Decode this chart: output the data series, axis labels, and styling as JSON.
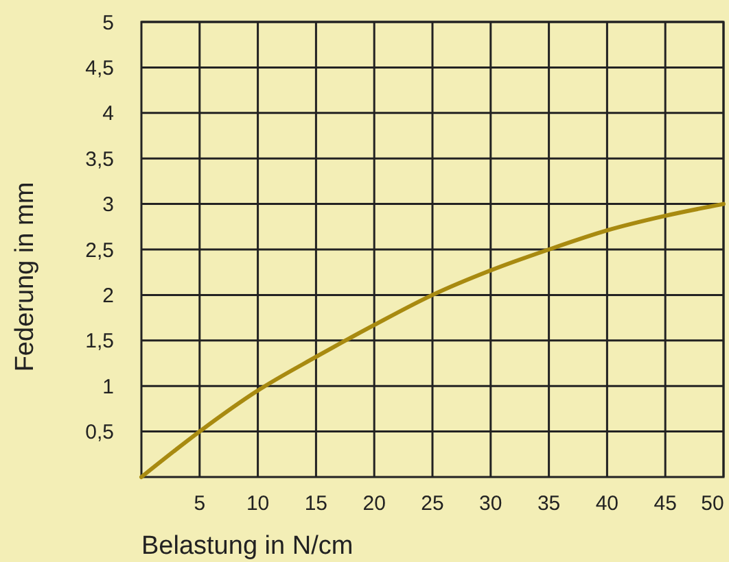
{
  "chart_data": {
    "type": "line",
    "xlabel": "Belastung in N/cm",
    "ylabel": "Federung in mm",
    "x": [
      0,
      5,
      10,
      15,
      20,
      25,
      30,
      35,
      40,
      45,
      50
    ],
    "series": [
      {
        "color": "#a88a10",
        "values": [
          0,
          0.5,
          0.95,
          1.32,
          1.67,
          2.0,
          2.27,
          2.5,
          2.71,
          2.87,
          3.0
        ]
      }
    ],
    "xlim": [
      0,
      50
    ],
    "ylim": [
      0,
      5
    ],
    "xticks": [
      5,
      10,
      15,
      20,
      25,
      30,
      35,
      40,
      45,
      50
    ],
    "yticks": [
      {
        "value": 0.5,
        "label": "0,5"
      },
      1,
      {
        "value": 1.5,
        "label": "1,5"
      },
      2,
      {
        "value": 2.5,
        "label": "2,5"
      },
      3,
      {
        "value": 3.5,
        "label": "3,5"
      },
      4,
      {
        "value": 4.5,
        "label": "4,5"
      },
      5
    ],
    "grid": true,
    "marker": "none",
    "line_style": "solid"
  }
}
